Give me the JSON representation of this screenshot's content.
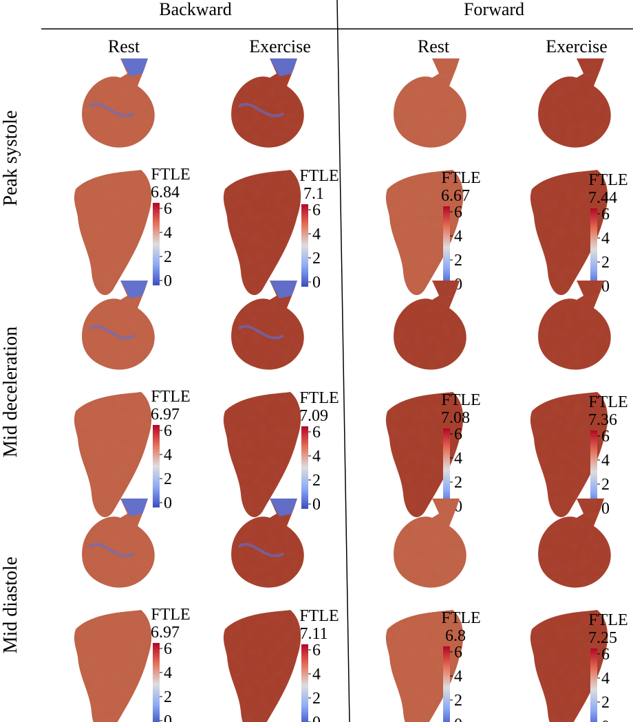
{
  "header": {
    "groups": [
      "Backward",
      "Forward"
    ],
    "conditions": [
      "Rest",
      "Exercise",
      "Rest",
      "Exercise"
    ]
  },
  "rows": [
    {
      "label": "Peak systole",
      "maxima": [
        "6.84",
        "7.1",
        "6.67",
        "7.44"
      ]
    },
    {
      "label": "Mid deceleration",
      "maxima": [
        "6.97",
        "7.09",
        "7.08",
        "7.36"
      ]
    },
    {
      "label": "Mid diastole",
      "maxima": [
        "6.97",
        "7.11",
        "6.8",
        "7.25"
      ]
    }
  ],
  "colorbar": {
    "title": "FTLE",
    "ticks": [
      "6",
      "4",
      "2",
      "0"
    ],
    "colors": {
      "high": "#b40426",
      "mid": "#dddddd",
      "low": "#3b4cc0"
    }
  },
  "colors": {
    "field_dense": "#a8422e",
    "field_medium": "#c2654a",
    "field_light": "#d39478",
    "inflow_blue": "#5a72d8"
  }
}
